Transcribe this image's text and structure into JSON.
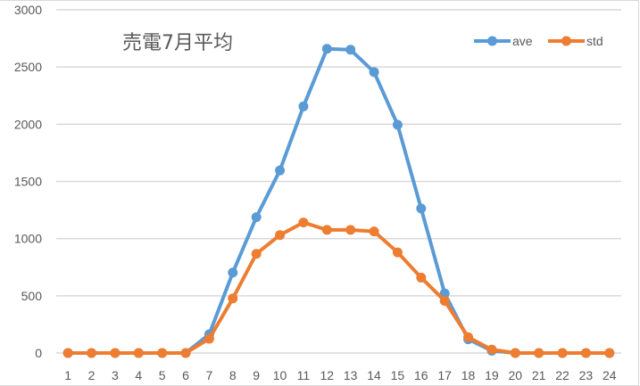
{
  "chart_data": {
    "type": "line",
    "title": "売電7月平均",
    "xlabel": "",
    "ylabel": "",
    "ylim": [
      0,
      3000
    ],
    "yticks": [
      0,
      500,
      1000,
      1500,
      2000,
      2500,
      3000
    ],
    "grid": true,
    "legend_position": "top-right",
    "categories": [
      "1",
      "2",
      "3",
      "4",
      "5",
      "6",
      "7",
      "8",
      "9",
      "10",
      "11",
      "12",
      "13",
      "14",
      "15",
      "16",
      "17",
      "18",
      "19",
      "20",
      "21",
      "22",
      "23",
      "24"
    ],
    "series": [
      {
        "name": "ave",
        "color": "#5b9bd5",
        "values": [
          0,
          0,
          0,
          0,
          0,
          0,
          164,
          703,
          1187,
          1596,
          2156,
          2659,
          2651,
          2456,
          1995,
          1263,
          521,
          120,
          20,
          0,
          0,
          0,
          0,
          0
        ]
      },
      {
        "name": "std",
        "color": "#ed7d31",
        "values": [
          0,
          0,
          0,
          0,
          0,
          0,
          125,
          477,
          867,
          1031,
          1141,
          1076,
          1076,
          1063,
          880,
          659,
          456,
          138,
          30,
          0,
          0,
          0,
          0,
          0
        ]
      }
    ]
  }
}
